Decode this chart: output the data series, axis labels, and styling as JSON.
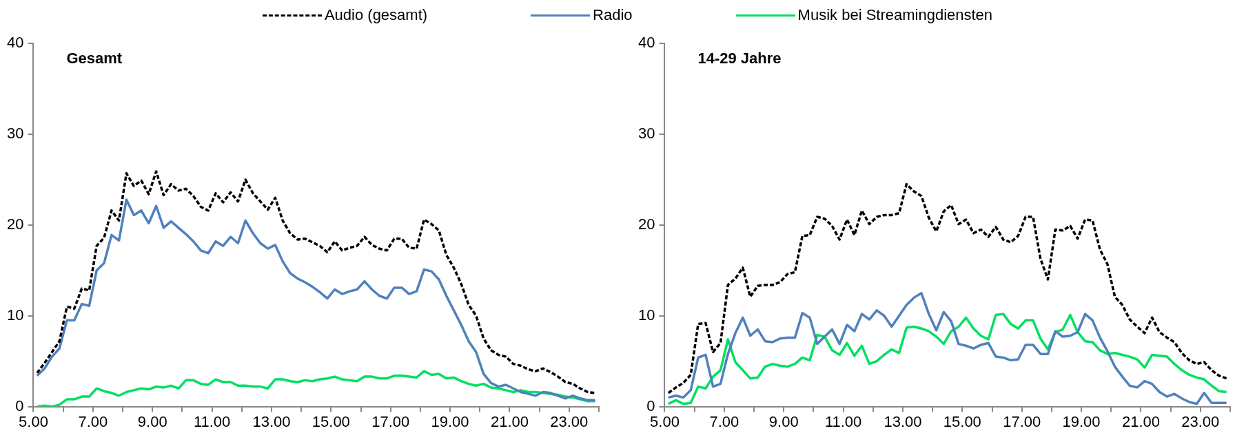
{
  "chart_data": [
    {
      "type": "line",
      "title": "Gesamt",
      "legend": "top",
      "grid": false,
      "marker": "none",
      "x": [
        5.125,
        5.375,
        5.625,
        5.875,
        6.125,
        6.375,
        6.625,
        6.875,
        7.125,
        7.375,
        7.625,
        7.875,
        8.125,
        8.375,
        8.625,
        8.875,
        9.125,
        9.375,
        9.625,
        9.875,
        10.125,
        10.375,
        10.625,
        10.875,
        11.125,
        11.375,
        11.625,
        11.875,
        12.125,
        12.375,
        12.625,
        12.875,
        13.125,
        13.375,
        13.625,
        13.875,
        14.125,
        14.375,
        14.625,
        14.875,
        15.125,
        15.375,
        15.625,
        15.875,
        16.125,
        16.375,
        16.625,
        16.875,
        17.125,
        17.375,
        17.625,
        17.875,
        18.125,
        18.375,
        18.625,
        18.875,
        19.125,
        19.375,
        19.625,
        19.875,
        20.125,
        20.375,
        20.625,
        20.875,
        21.125,
        21.375,
        21.625,
        21.875,
        22.125,
        22.375,
        22.625,
        22.875,
        23.125,
        23.375,
        23.625,
        23.875
      ],
      "xlim": [
        5,
        24
      ],
      "xticks": [
        {
          "value": 5,
          "label": "5.00"
        },
        {
          "value": 6,
          "label": null
        },
        {
          "value": 7,
          "label": "7.00"
        },
        {
          "value": 8,
          "label": null
        },
        {
          "value": 9,
          "label": "9.00"
        },
        {
          "value": 10,
          "label": null
        },
        {
          "value": 11,
          "label": "11.00"
        },
        {
          "value": 12,
          "label": null
        },
        {
          "value": 13,
          "label": "13.00"
        },
        {
          "value": 14,
          "label": null
        },
        {
          "value": 15,
          "label": "15.00"
        },
        {
          "value": 16,
          "label": null
        },
        {
          "value": 17,
          "label": "17.00"
        },
        {
          "value": 18,
          "label": null
        },
        {
          "value": 19,
          "label": "19.00"
        },
        {
          "value": 20,
          "label": null
        },
        {
          "value": 21,
          "label": "21.00"
        },
        {
          "value": 22,
          "label": null
        },
        {
          "value": 23,
          "label": "23.00"
        },
        {
          "value": 24,
          "label": null
        }
      ],
      "ylim": [
        0,
        40
      ],
      "yticks": [
        0,
        10,
        20,
        30,
        40
      ],
      "series": [
        {
          "name": "Audio (gesamt)",
          "color": "#000000",
          "line_style": "dashed",
          "values": [
            3.7,
            4.8,
            6.0,
            7.2,
            11.0,
            10.8,
            13.0,
            12.8,
            17.7,
            18.6,
            21.6,
            20.5,
            25.7,
            24.3,
            24.9,
            23.4,
            25.9,
            23.3,
            24.5,
            23.8,
            24.0,
            23.2,
            22.0,
            21.6,
            23.5,
            22.5,
            23.6,
            22.6,
            25.0,
            23.5,
            22.6,
            21.7,
            23.0,
            20.5,
            19.1,
            18.4,
            18.5,
            18.1,
            17.7,
            17.0,
            18.2,
            17.2,
            17.5,
            17.7,
            18.7,
            17.8,
            17.4,
            17.2,
            18.5,
            18.5,
            17.5,
            17.4,
            20.6,
            20.1,
            19.4,
            16.7,
            15.3,
            13.5,
            11.2,
            10.0,
            7.5,
            6.2,
            5.7,
            5.5,
            4.7,
            4.5,
            4.1,
            3.9,
            4.2,
            3.8,
            3.3,
            2.7,
            2.5,
            2.0,
            1.6,
            1.5
          ]
        },
        {
          "name": "Radio",
          "color": "#4f81bd",
          "line_style": "solid",
          "values": [
            3.4,
            4.2,
            5.5,
            6.4,
            9.5,
            9.5,
            11.3,
            11.1,
            15.0,
            15.8,
            18.9,
            18.3,
            22.8,
            21.1,
            21.6,
            20.2,
            22.1,
            19.7,
            20.4,
            19.7,
            19.0,
            18.2,
            17.2,
            16.9,
            18.2,
            17.7,
            18.7,
            18.0,
            20.5,
            19.1,
            18.0,
            17.4,
            17.8,
            16.0,
            14.7,
            14.1,
            13.7,
            13.2,
            12.6,
            11.9,
            12.9,
            12.4,
            12.7,
            12.9,
            13.8,
            12.9,
            12.2,
            11.9,
            13.1,
            13.1,
            12.4,
            12.7,
            15.1,
            14.9,
            14.0,
            12.2,
            10.6,
            9.0,
            7.2,
            6.0,
            3.6,
            2.6,
            2.2,
            2.4,
            2.0,
            1.6,
            1.4,
            1.2,
            1.6,
            1.5,
            1.2,
            0.9,
            1.2,
            0.9,
            0.7,
            0.7
          ]
        },
        {
          "name": "Musik bei Streamingdiensten",
          "color": "#00e060",
          "line_style": "solid",
          "values": [
            0.0,
            0.1,
            0.0,
            0.2,
            0.8,
            0.8,
            1.1,
            1.1,
            2.0,
            1.7,
            1.5,
            1.2,
            1.6,
            1.8,
            2.0,
            1.9,
            2.2,
            2.1,
            2.3,
            2.0,
            2.9,
            2.9,
            2.5,
            2.4,
            3.0,
            2.7,
            2.7,
            2.3,
            2.3,
            2.2,
            2.2,
            2.0,
            3.0,
            3.0,
            2.8,
            2.7,
            2.9,
            2.8,
            3.0,
            3.1,
            3.3,
            3.0,
            2.9,
            2.8,
            3.3,
            3.3,
            3.1,
            3.1,
            3.4,
            3.4,
            3.3,
            3.2,
            3.9,
            3.5,
            3.6,
            3.1,
            3.2,
            2.8,
            2.5,
            2.3,
            2.5,
            2.1,
            2.0,
            1.8,
            1.6,
            1.8,
            1.6,
            1.6,
            1.5,
            1.4,
            1.3,
            1.1,
            1.0,
            0.8,
            0.6,
            0.6
          ]
        }
      ]
    },
    {
      "type": "line",
      "title": "14-29 Jahre",
      "grid": false,
      "marker": "none",
      "x": [
        5.125,
        5.375,
        5.625,
        5.875,
        6.125,
        6.375,
        6.625,
        6.875,
        7.125,
        7.375,
        7.625,
        7.875,
        8.125,
        8.375,
        8.625,
        8.875,
        9.125,
        9.375,
        9.625,
        9.875,
        10.125,
        10.375,
        10.625,
        10.875,
        11.125,
        11.375,
        11.625,
        11.875,
        12.125,
        12.375,
        12.625,
        12.875,
        13.125,
        13.375,
        13.625,
        13.875,
        14.125,
        14.375,
        14.625,
        14.875,
        15.125,
        15.375,
        15.625,
        15.875,
        16.125,
        16.375,
        16.625,
        16.875,
        17.125,
        17.375,
        17.625,
        17.875,
        18.125,
        18.375,
        18.625,
        18.875,
        19.125,
        19.375,
        19.625,
        19.875,
        20.125,
        20.375,
        20.625,
        20.875,
        21.125,
        21.375,
        21.625,
        21.875,
        22.125,
        22.375,
        22.625,
        22.875,
        23.125,
        23.375,
        23.625,
        23.875
      ],
      "xlim": [
        5,
        24
      ],
      "xticks": [
        {
          "value": 5,
          "label": "5.00"
        },
        {
          "value": 6,
          "label": null
        },
        {
          "value": 7,
          "label": "7.00"
        },
        {
          "value": 8,
          "label": null
        },
        {
          "value": 9,
          "label": "9.00"
        },
        {
          "value": 10,
          "label": null
        },
        {
          "value": 11,
          "label": "11.00"
        },
        {
          "value": 12,
          "label": null
        },
        {
          "value": 13,
          "label": "13.00"
        },
        {
          "value": 14,
          "label": null
        },
        {
          "value": 15,
          "label": "15.00"
        },
        {
          "value": 16,
          "label": null
        },
        {
          "value": 17,
          "label": "17.00"
        },
        {
          "value": 18,
          "label": null
        },
        {
          "value": 19,
          "label": "19.00"
        },
        {
          "value": 20,
          "label": null
        },
        {
          "value": 21,
          "label": "21.00"
        },
        {
          "value": 22,
          "label": null
        },
        {
          "value": 23,
          "label": "23.00"
        },
        {
          "value": 24,
          "label": null
        }
      ],
      "ylim": [
        0,
        40
      ],
      "yticks": [
        0,
        10,
        20,
        30,
        40
      ],
      "series": [
        {
          "color": "#000000",
          "line_style": "dashed",
          "values": [
            1.5,
            2.1,
            2.6,
            3.5,
            9.1,
            9.2,
            6.0,
            7.0,
            13.4,
            14.1,
            15.3,
            12.1,
            13.3,
            13.4,
            13.4,
            13.7,
            14.6,
            14.8,
            18.8,
            18.9,
            20.9,
            20.7,
            19.9,
            18.4,
            20.6,
            18.9,
            21.6,
            20.1,
            20.9,
            21.1,
            21.1,
            21.3,
            24.5,
            23.7,
            23.2,
            20.8,
            19.3,
            21.5,
            22.2,
            20.1,
            20.6,
            19.1,
            19.5,
            18.7,
            19.8,
            18.4,
            18.1,
            18.8,
            20.9,
            20.9,
            16.3,
            14.0,
            19.5,
            19.4,
            19.9,
            18.5,
            20.6,
            20.5,
            17.3,
            15.7,
            12.1,
            11.2,
            9.6,
            8.8,
            8.1,
            9.8,
            8.2,
            7.6,
            7.1,
            5.9,
            5.1,
            4.7,
            4.9,
            4.0,
            3.4,
            3.1
          ]
        },
        {
          "color": "#4f81bd",
          "line_style": "solid",
          "values": [
            1.0,
            1.2,
            1.0,
            1.8,
            5.4,
            5.7,
            2.2,
            2.5,
            5.8,
            8.1,
            9.8,
            7.8,
            8.5,
            7.2,
            7.1,
            7.5,
            7.6,
            7.6,
            10.3,
            9.8,
            6.9,
            7.7,
            8.5,
            6.9,
            9.0,
            8.3,
            10.2,
            9.6,
            10.6,
            10.0,
            8.8,
            10.0,
            11.2,
            12.0,
            12.5,
            10.2,
            8.4,
            10.4,
            9.4,
            6.9,
            6.7,
            6.4,
            6.8,
            7.0,
            5.5,
            5.4,
            5.1,
            5.2,
            6.8,
            6.8,
            5.8,
            5.8,
            8.3,
            7.7,
            7.8,
            8.2,
            10.2,
            9.5,
            7.6,
            6.1,
            4.4,
            3.3,
            2.3,
            2.1,
            2.8,
            2.5,
            1.6,
            1.1,
            1.4,
            0.9,
            0.5,
            0.3,
            1.5,
            0.4,
            0.4,
            0.4
          ]
        },
        {
          "color": "#00e060",
          "line_style": "solid",
          "values": [
            0.3,
            0.7,
            0.3,
            0.4,
            2.2,
            2.0,
            3.3,
            4.0,
            7.4,
            4.9,
            4.0,
            3.1,
            3.2,
            4.4,
            4.7,
            4.5,
            4.4,
            4.7,
            5.4,
            5.1,
            7.9,
            7.7,
            6.2,
            5.7,
            7.0,
            5.6,
            6.7,
            4.7,
            5.0,
            5.7,
            6.3,
            5.9,
            8.7,
            8.8,
            8.6,
            8.3,
            7.7,
            6.9,
            8.3,
            8.8,
            9.8,
            8.6,
            7.8,
            7.4,
            10.1,
            10.2,
            9.1,
            8.6,
            9.5,
            9.5,
            7.5,
            6.3,
            8.2,
            8.5,
            10.1,
            8.2,
            7.2,
            7.1,
            6.2,
            5.8,
            5.9,
            5.7,
            5.5,
            5.2,
            4.3,
            5.7,
            5.6,
            5.5,
            4.7,
            4.0,
            3.5,
            3.2,
            3.0,
            2.3,
            1.7,
            1.6
          ]
        }
      ]
    }
  ]
}
